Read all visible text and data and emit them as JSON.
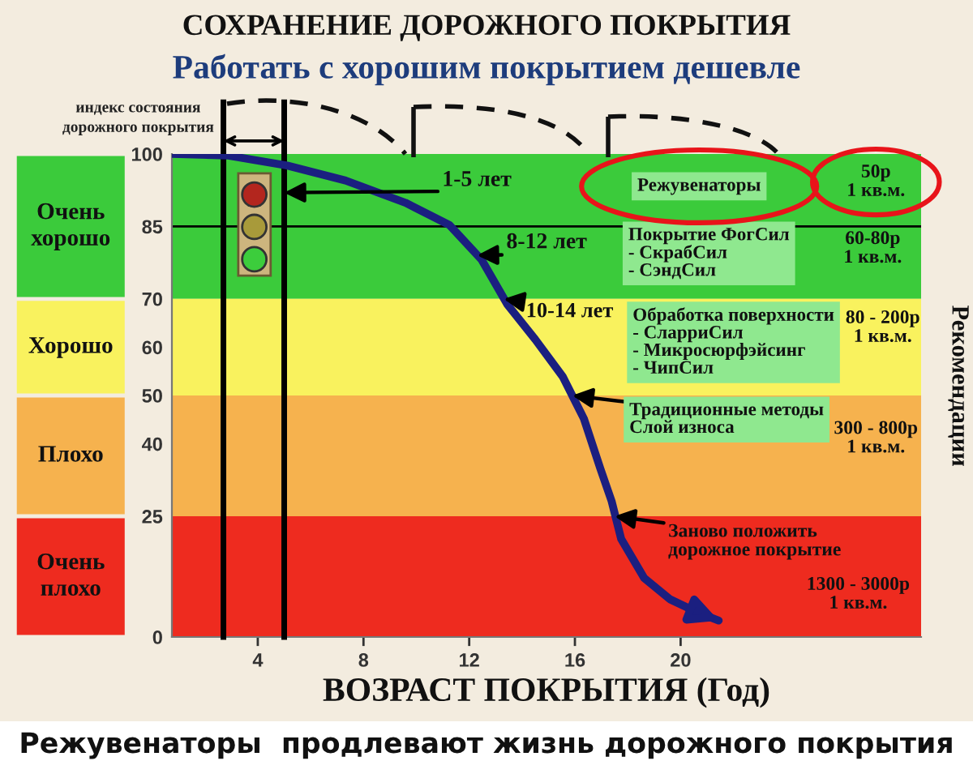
{
  "chart_data": {
    "type": "line",
    "title": "СОХРАНЕНИЕ ДОРОЖНОГО ПОКРЫТИЯ",
    "subtitle": "Работать с хорошим покрытием дешевле",
    "xlabel": "ВОЗРАСТ ПОКРЫТИЯ (Год)",
    "ylabel": "индекс состояния\nдорожного покрытия",
    "x": [
      0.75,
      2.84,
      5.11,
      7.32,
      9.59,
      11.25,
      12.47,
      13.45,
      14.5,
      15.54,
      16.34,
      16.96,
      17.39,
      17.75,
      18.62,
      19.6,
      20.64,
      21.44
    ],
    "series": [
      {
        "color": "#1b1f80",
        "values": [
          100,
          99.7,
          97.6,
          94.5,
          89.9,
          85.3,
          78.1,
          68.8,
          61.6,
          53.9,
          45.2,
          34.9,
          28.1,
          20.3,
          12.2,
          7.8,
          5.1,
          3.4
        ]
      }
    ],
    "xlim": [
      0.75,
      29.1
    ],
    "xticks": [
      4,
      8,
      12,
      16,
      20
    ],
    "ylim": [
      0,
      100
    ],
    "yticks": [
      0,
      25,
      40,
      50,
      60,
      70,
      85,
      100
    ],
    "bands": [
      {
        "axis": "y",
        "from": 70,
        "to": 100,
        "label": "Очень\nхорошо",
        "color": "#3bcb3b"
      },
      {
        "axis": "y",
        "from": 50,
        "to": 70,
        "label": "Хорошо",
        "color": "#f9f25e"
      },
      {
        "axis": "y",
        "from": 25,
        "to": 50,
        "label": "Плохо",
        "color": "#f6b24e"
      },
      {
        "axis": "y",
        "from": 0,
        "to": 25,
        "label": "Очень\nплохо",
        "color": "#ee2b1f"
      }
    ],
    "ref_lines": [
      {
        "axis": "x",
        "value": 2.7,
        "color": "#000000"
      },
      {
        "axis": "x",
        "value": 5,
        "color": "#000000"
      },
      {
        "axis": "y",
        "value": 85,
        "color": "#000000"
      }
    ],
    "annotations": [
      {
        "text": "1-5 лет",
        "x": 5,
        "y": 92
      },
      "Режувенаторы",
      "50р\n1 кв.м.",
      {
        "text": "8-12 лет",
        "x": 12.3,
        "y": 79
      },
      "Покрытие ФогСил\n- СкрабСил\n- СэндСил",
      "60-80р\n1 кв.м.",
      {
        "text": "10-14 лет",
        "x": 13.3,
        "y": 70
      },
      "Обработка поверхности\n- СларриСил\n- Микросюрфэйсинг\n- ЧипСил",
      "80 - 200р\n1 кв.м.",
      {
        "text": "Традиционные методы\nСлой износа",
        "x": 15.9,
        "y": 50
      },
      "300 - 800р\n1 кв.м.",
      {
        "text": "Заново положить\nдорожное покрытие",
        "x": 17.5,
        "y": 25
      },
      "1300 - 3000р\n1 кв.м.",
      "Рекомендации",
      "Режувенаторы  продлевают жизнь дорожного покрытия"
    ]
  }
}
